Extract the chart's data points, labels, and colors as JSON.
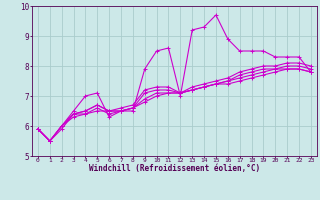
{
  "xlabel": "Windchill (Refroidissement éolien,°C)",
  "xlim": [
    -0.5,
    23.5
  ],
  "ylim": [
    5,
    10
  ],
  "yticks": [
    5,
    6,
    7,
    8,
    9,
    10
  ],
  "xticks": [
    0,
    1,
    2,
    3,
    4,
    5,
    6,
    7,
    8,
    9,
    10,
    11,
    12,
    13,
    14,
    15,
    16,
    17,
    18,
    19,
    20,
    21,
    22,
    23
  ],
  "bg_color": "#cce8e8",
  "line_color": "#cc00cc",
  "grid_color": "#aacccc",
  "series": [
    [
      5.9,
      5.5,
      6.0,
      6.5,
      7.0,
      7.1,
      6.3,
      6.5,
      6.5,
      7.9,
      8.5,
      8.6,
      7.0,
      9.2,
      9.3,
      9.7,
      8.9,
      8.5,
      8.5,
      8.5,
      8.3,
      8.3,
      8.3,
      7.8
    ],
    [
      5.9,
      5.5,
      5.9,
      6.4,
      6.4,
      6.5,
      6.5,
      6.5,
      6.6,
      6.8,
      7.0,
      7.1,
      7.1,
      7.2,
      7.3,
      7.4,
      7.4,
      7.5,
      7.6,
      7.7,
      7.8,
      7.9,
      7.9,
      7.8
    ],
    [
      5.9,
      5.5,
      6.0,
      6.3,
      6.4,
      6.6,
      6.4,
      6.5,
      6.6,
      6.9,
      7.1,
      7.1,
      7.1,
      7.2,
      7.3,
      7.4,
      7.5,
      7.6,
      7.7,
      7.8,
      7.9,
      7.9,
      7.9,
      7.8
    ],
    [
      5.9,
      5.5,
      6.0,
      6.4,
      6.5,
      6.7,
      6.5,
      6.5,
      6.6,
      7.1,
      7.2,
      7.2,
      7.1,
      7.2,
      7.3,
      7.4,
      7.5,
      7.7,
      7.8,
      7.9,
      7.9,
      8.0,
      8.0,
      7.9
    ],
    [
      5.9,
      5.5,
      6.0,
      6.4,
      6.5,
      6.7,
      6.5,
      6.6,
      6.7,
      7.2,
      7.3,
      7.3,
      7.1,
      7.3,
      7.4,
      7.5,
      7.6,
      7.8,
      7.9,
      8.0,
      8.0,
      8.1,
      8.1,
      8.0
    ]
  ],
  "xtick_fontsize": 4.5,
  "ytick_fontsize": 5.5,
  "xlabel_fontsize": 5.5
}
